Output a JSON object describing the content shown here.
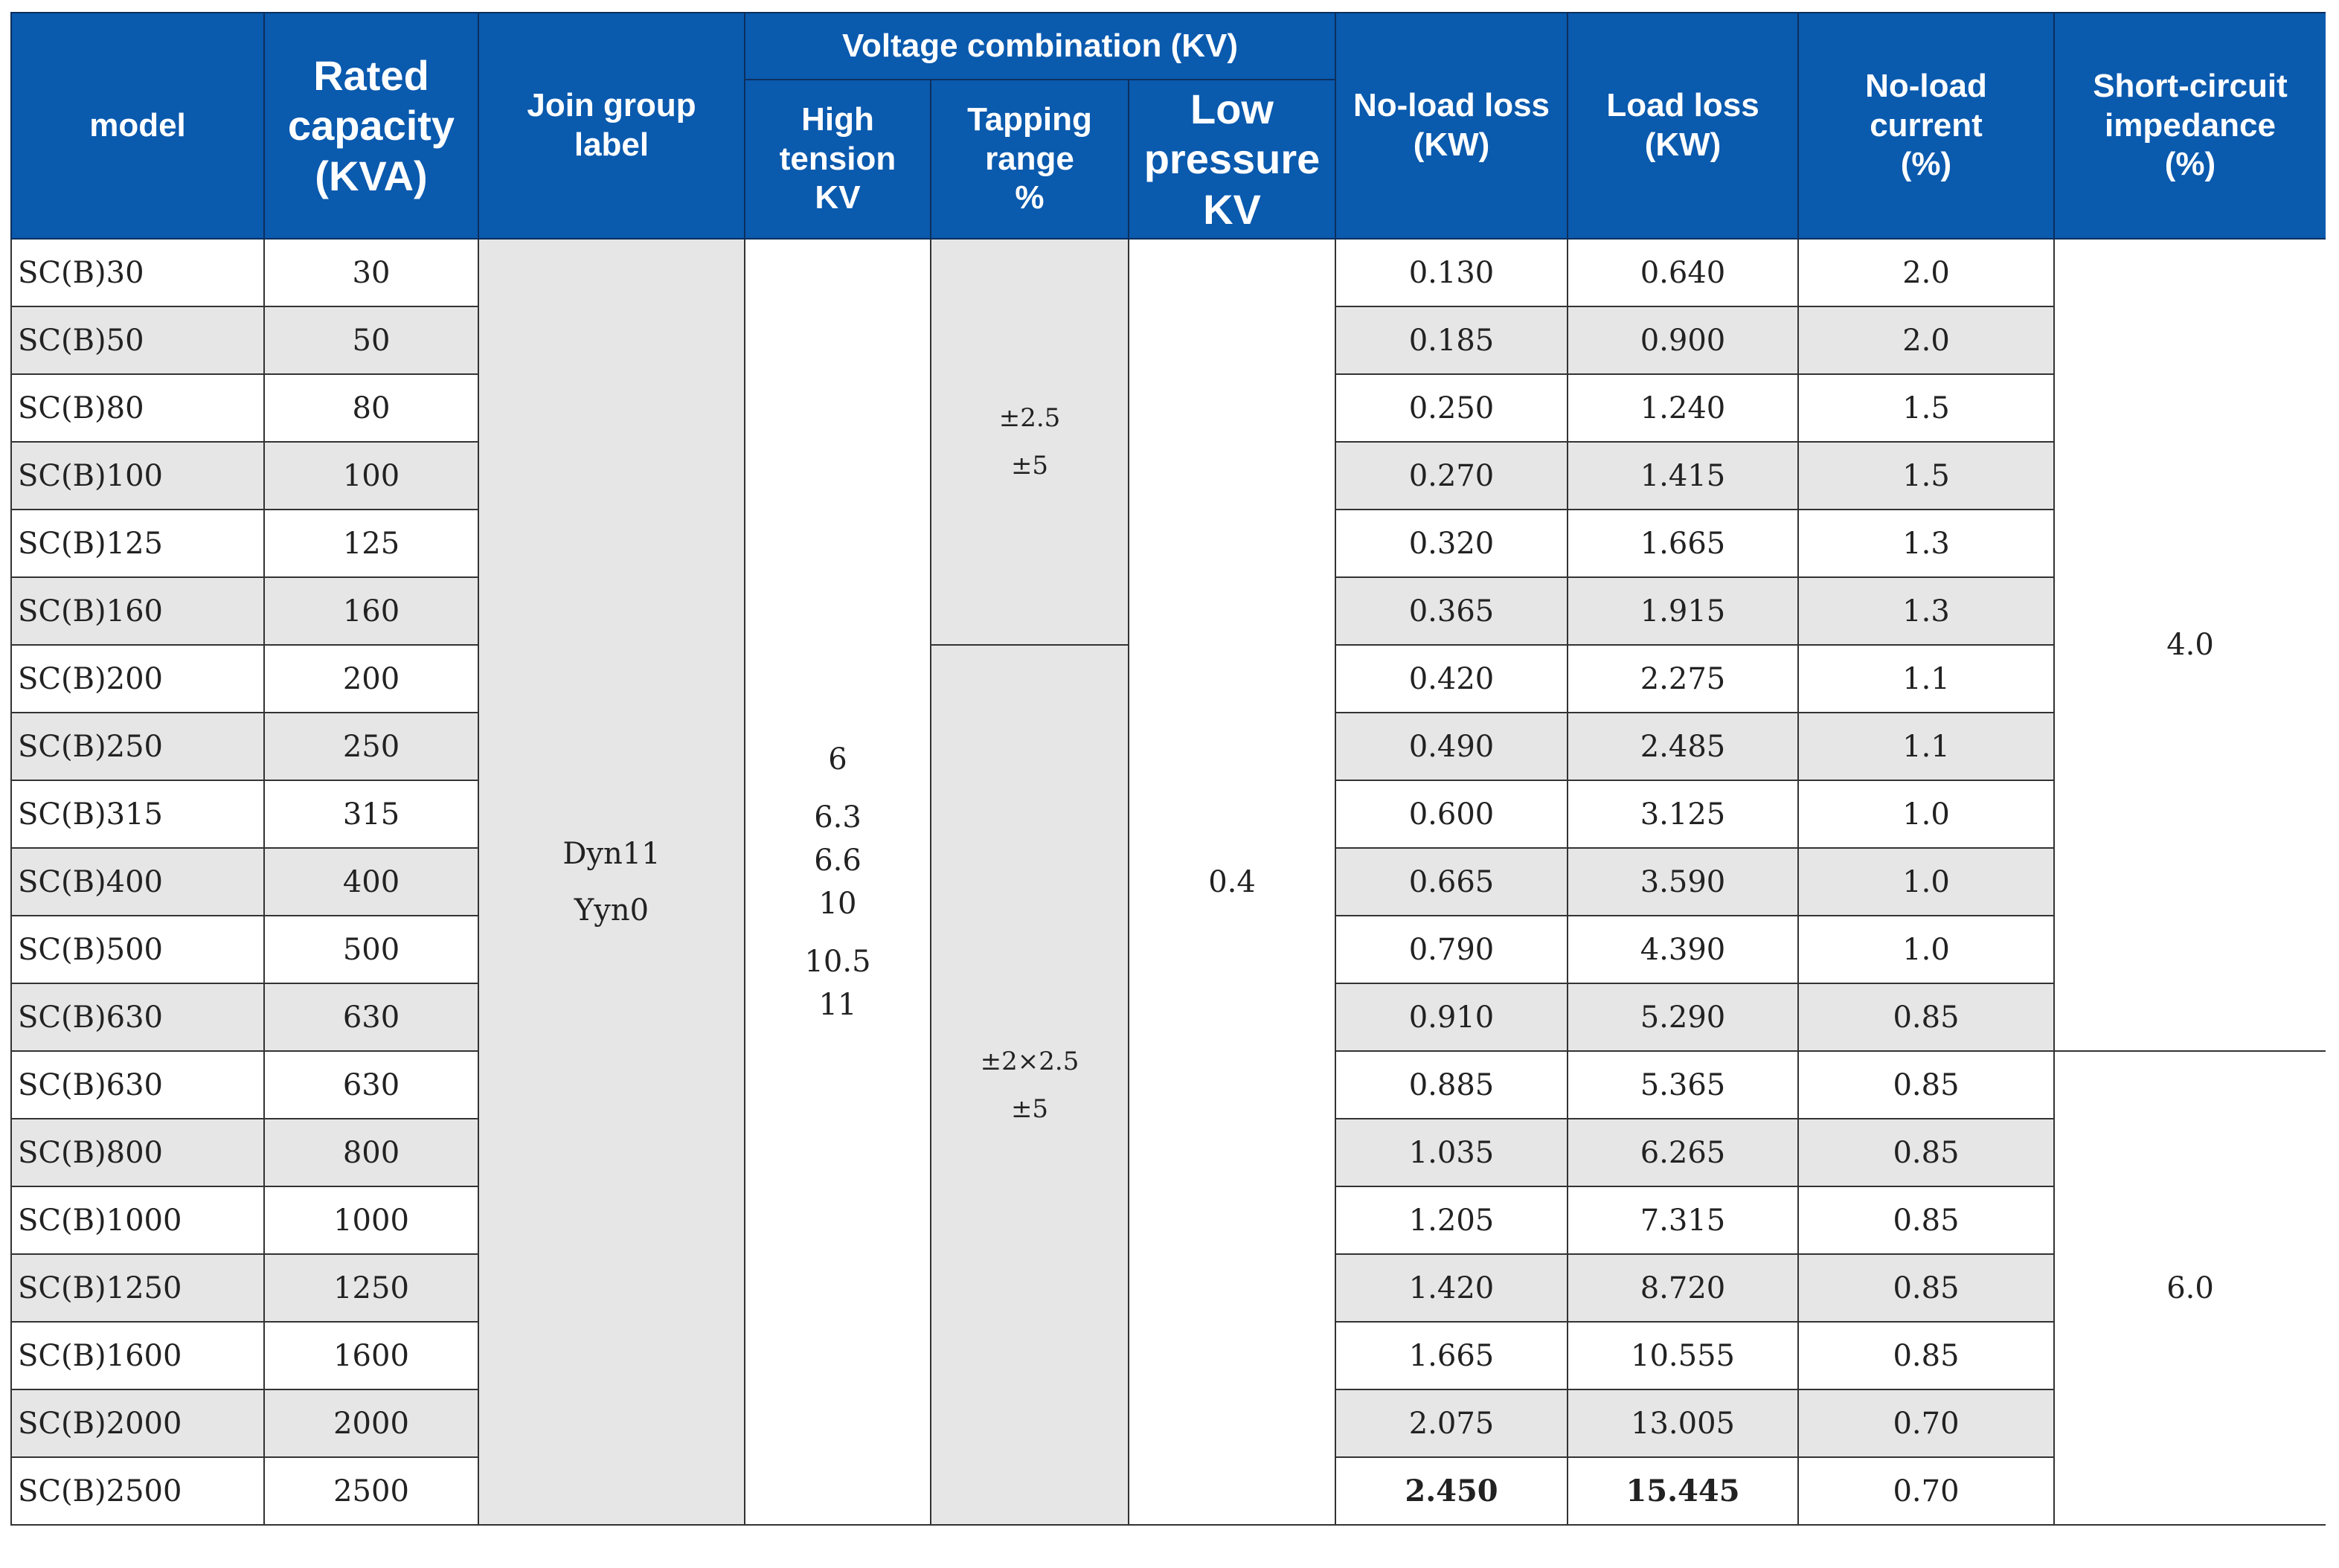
{
  "headers": {
    "model": "model",
    "rated_capacity": [
      "Rated",
      "capacity",
      "(KVA)"
    ],
    "join_group": [
      "Join group",
      "label"
    ],
    "voltage_combination": "Voltage combination (KV)",
    "high_tension": [
      "High",
      "tension",
      "KV"
    ],
    "tapping_range": [
      "Tapping",
      "range",
      "%"
    ],
    "low_pressure": [
      "Low",
      "pressure",
      "KV"
    ],
    "no_load_loss": [
      "No-load loss",
      "(KW)"
    ],
    "load_loss": [
      "Load loss",
      "(KW)"
    ],
    "no_load_current": [
      "No-load",
      "current",
      "(%)"
    ],
    "impedance": [
      "Short-circuit",
      "impedance",
      "(%)"
    ]
  },
  "join_group_values": [
    "Dyn11",
    "Yyn0"
  ],
  "high_tension_values": [
    "6",
    "6.3",
    "6.6",
    "10",
    "10.5",
    "11"
  ],
  "tapping_groups": [
    [
      "±2.5",
      "±5"
    ],
    [
      "±2×2.5",
      "±5"
    ]
  ],
  "low_pressure_value": "0.4",
  "impedance_groups": [
    "4.0",
    "6.0"
  ],
  "rows": [
    {
      "model": "SC(B)30",
      "capacity": "30",
      "no_load_loss": "0.130",
      "load_loss": "0.640",
      "current": "2.0"
    },
    {
      "model": "SC(B)50",
      "capacity": "50",
      "no_load_loss": "0.185",
      "load_loss": "0.900",
      "current": "2.0"
    },
    {
      "model": "SC(B)80",
      "capacity": "80",
      "no_load_loss": "0.250",
      "load_loss": "1.240",
      "current": "1.5"
    },
    {
      "model": "SC(B)100",
      "capacity": "100",
      "no_load_loss": "0.270",
      "load_loss": "1.415",
      "current": "1.5"
    },
    {
      "model": "SC(B)125",
      "capacity": "125",
      "no_load_loss": "0.320",
      "load_loss": "1.665",
      "current": "1.3"
    },
    {
      "model": "SC(B)160",
      "capacity": "160",
      "no_load_loss": "0.365",
      "load_loss": "1.915",
      "current": "1.3"
    },
    {
      "model": "SC(B)200",
      "capacity": "200",
      "no_load_loss": "0.420",
      "load_loss": "2.275",
      "current": "1.1"
    },
    {
      "model": "SC(B)250",
      "capacity": "250",
      "no_load_loss": "0.490",
      "load_loss": "2.485",
      "current": "1.1"
    },
    {
      "model": "SC(B)315",
      "capacity": "315",
      "no_load_loss": "0.600",
      "load_loss": "3.125",
      "current": "1.0"
    },
    {
      "model": "SC(B)400",
      "capacity": "400",
      "no_load_loss": "0.665",
      "load_loss": "3.590",
      "current": "1.0"
    },
    {
      "model": "SC(B)500",
      "capacity": "500",
      "no_load_loss": "0.790",
      "load_loss": "4.390",
      "current": "1.0"
    },
    {
      "model": "SC(B)630",
      "capacity": "630",
      "no_load_loss": "0.910",
      "load_loss": "5.290",
      "current": "0.85"
    },
    {
      "model": "SC(B)630",
      "capacity": "630",
      "no_load_loss": "0.885",
      "load_loss": "5.365",
      "current": "0.85"
    },
    {
      "model": "SC(B)800",
      "capacity": "800",
      "no_load_loss": "1.035",
      "load_loss": "6.265",
      "current": "0.85"
    },
    {
      "model": "SC(B)1000",
      "capacity": "1000",
      "no_load_loss": "1.205",
      "load_loss": "7.315",
      "current": "0.85"
    },
    {
      "model": "SC(B)1250",
      "capacity": "1250",
      "no_load_loss": "1.420",
      "load_loss": "8.720",
      "current": "0.85"
    },
    {
      "model": "SC(B)1600",
      "capacity": "1600",
      "no_load_loss": "1.665",
      "load_loss": "10.555",
      "current": "0.85"
    },
    {
      "model": "SC(B)2000",
      "capacity": "2000",
      "no_load_loss": "2.075",
      "load_loss": "13.005",
      "current": "0.70"
    },
    {
      "model": "SC(B)2500",
      "capacity": "2500",
      "no_load_loss": "2.450",
      "load_loss": "15.445",
      "current": "0.70"
    }
  ]
}
